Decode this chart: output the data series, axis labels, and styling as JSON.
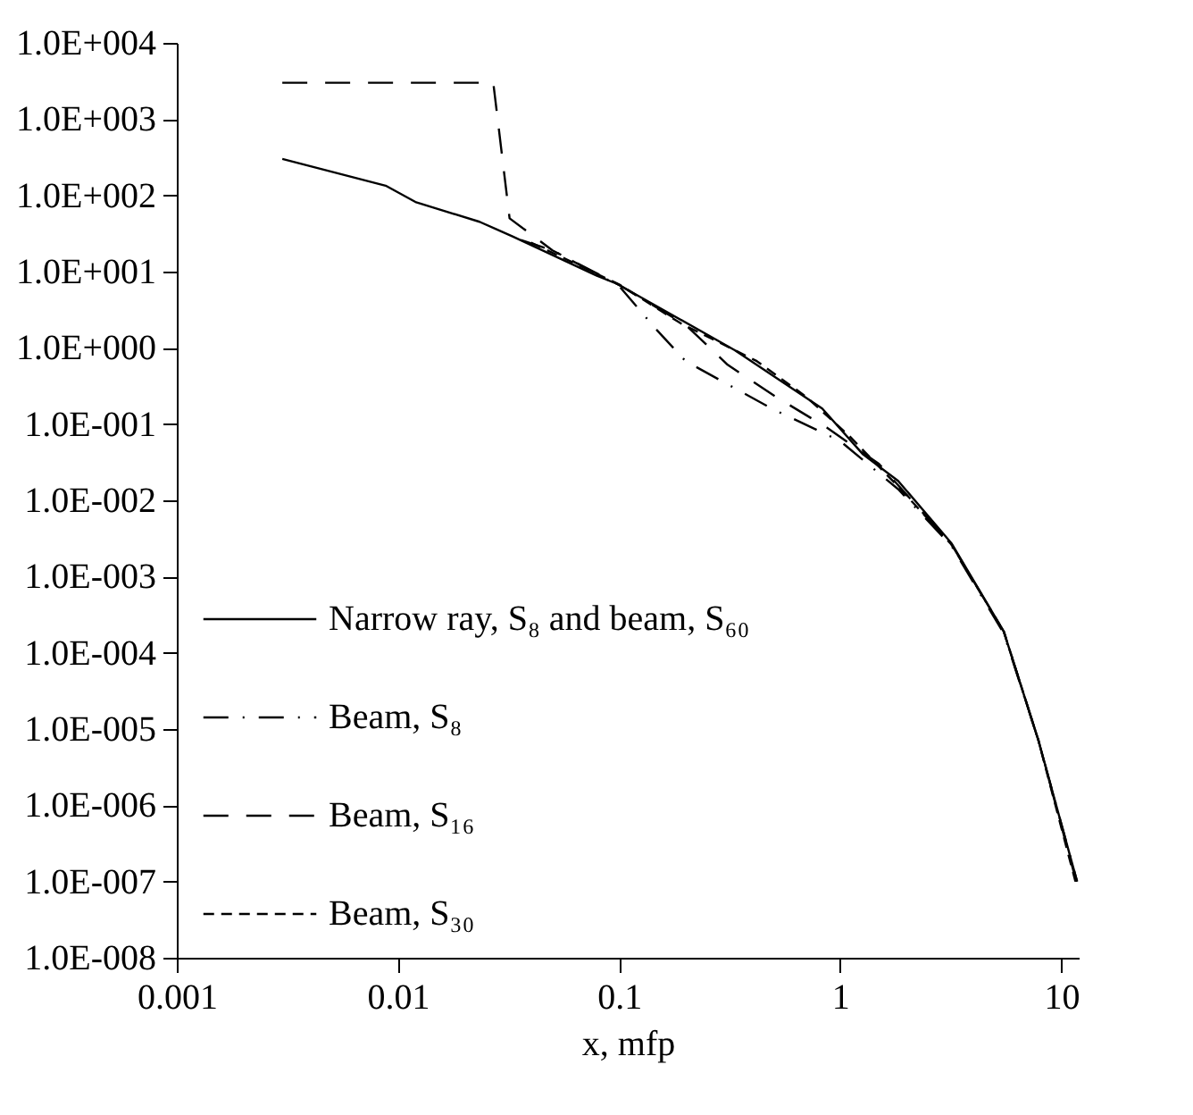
{
  "chart_data": {
    "type": "line",
    "xlabel": "x, mfp",
    "log": "xy",
    "grid": false,
    "legend": "bottom left",
    "xlim": [
      0.001,
      12
    ],
    "ylim": [
      1e-08,
      10000
    ],
    "xticks": [
      0.001,
      0.01,
      0.1,
      1,
      10
    ],
    "yticks": [
      {
        "value": 1e-08,
        "label": "1.0E-008"
      },
      {
        "value": 1e-07,
        "label": "1.0E-007"
      },
      {
        "value": 1e-06,
        "label": "1.0E-006"
      },
      {
        "value": 1e-05,
        "label": "1.0E-005"
      },
      {
        "value": 0.0001,
        "label": "1.0E-004"
      },
      {
        "value": 0.001,
        "label": "1.0E-003"
      },
      {
        "value": 0.01,
        "label": "1.0E-002"
      },
      {
        "value": 0.1,
        "label": "1.0E-001"
      },
      {
        "value": 1,
        "label": "1.0E+000"
      },
      {
        "value": 10,
        "label": "1.0E+001"
      },
      {
        "value": 100,
        "label": "1.0E+002"
      },
      {
        "value": 1000,
        "label": "1.0E+003"
      },
      {
        "value": 10000,
        "label": "1.0E+004"
      }
    ],
    "series": [
      {
        "name": "Narrow ray, S₈ and beam, S₆₀",
        "color": "#000000",
        "line_style": "solid",
        "x": [
          0.003,
          0.0088,
          0.012,
          0.0234,
          0.033,
          0.079,
          0.098,
          0.334,
          0.83,
          1.27,
          1.83,
          3.2,
          5.5,
          7.9,
          11.8
        ],
        "values": [
          300,
          134,
          82,
          45,
          29,
          8.9,
          6.9,
          0.93,
          0.16,
          0.04,
          0.018,
          0.0027,
          0.00019,
          7e-06,
          1e-07
        ]
      },
      {
        "name": "Beam, S₈",
        "color": "#000000",
        "line_style": "dashed",
        "x": [
          0.036,
          0.05,
          0.1,
          0.146,
          0.2,
          0.49,
          1.0,
          1.83,
          3.2,
          5.5,
          7.9,
          11.8
        ],
        "values": [
          26,
          19,
          6.5,
          1.8,
          0.67,
          0.16,
          0.06,
          0.014,
          0.0025,
          0.00018,
          7e-06,
          1e-07
        ]
      },
      {
        "name": "Beam, S₁₆",
        "color": "#000000",
        "line_style": "dashed",
        "x": [
          0.003,
          0.027,
          0.032,
          0.05,
          0.1,
          0.2,
          0.31,
          0.51,
          0.87,
          1.5,
          3.2,
          5.5,
          7.9,
          11.7
        ],
        "values": [
          3000,
          3000,
          50,
          19,
          6.7,
          2.0,
          0.6,
          0.23,
          0.09,
          0.03,
          0.0026,
          0.00019,
          7e-06,
          1e-07
        ]
      },
      {
        "name": "Beam, S₃₀",
        "color": "#000000",
        "line_style": "dashed",
        "x": [
          0.04,
          0.1,
          0.19,
          0.42,
          0.7,
          1.1,
          1.8,
          3.2,
          5.5,
          7.9,
          11.6
        ],
        "values": [
          24,
          6.8,
          2.1,
          0.67,
          0.23,
          0.07,
          0.016,
          0.0026,
          0.00019,
          7e-06,
          1e-07
        ]
      }
    ]
  }
}
